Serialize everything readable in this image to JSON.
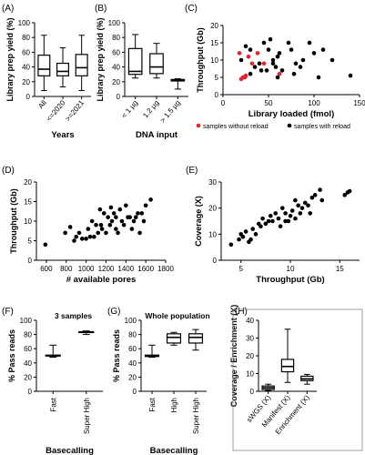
{
  "panels": {
    "A": "(A)",
    "B": "(B)",
    "C": "(C)",
    "D": "(D)",
    "E": "(E)",
    "F": "(F)",
    "G": "(G)",
    "H": "(H)"
  },
  "colors": {
    "black": "#000000",
    "red": "#e8202a"
  },
  "chart_data": [
    {
      "id": "A",
      "type": "box",
      "ylabel": "Library prep yield (%)",
      "xlabel": "Years",
      "ylim": [
        0,
        100
      ],
      "yticks": [
        "0",
        "20",
        "40",
        "60",
        "80",
        "100"
      ],
      "categories": [
        "All",
        "<=2020",
        ">=2021"
      ],
      "boxes": [
        {
          "min": 8,
          "q1": 28,
          "median": 37,
          "q3": 56,
          "max": 83
        },
        {
          "min": 13,
          "q1": 28,
          "median": 34,
          "q3": 45,
          "max": 66
        },
        {
          "min": 8,
          "q1": 28,
          "median": 39,
          "q3": 57,
          "max": 83
        }
      ]
    },
    {
      "id": "B",
      "type": "box",
      "ylabel": "Library prep yield (%)",
      "xlabel": "DNA input",
      "ylim": [
        0,
        100
      ],
      "yticks": [
        "0",
        "20",
        "40",
        "60",
        "80",
        "100"
      ],
      "categories": [
        "< 1 µg",
        "1.2 µg",
        "> 1.5 µg"
      ],
      "boxes": [
        {
          "min": 25,
          "q1": 30,
          "median": 34,
          "q3": 65,
          "max": 84
        },
        {
          "min": 25,
          "q1": 31,
          "median": 40,
          "q3": 58,
          "max": 72
        },
        {
          "min": 10,
          "q1": 21,
          "median": 22,
          "q3": 23,
          "max": 24
        }
      ]
    },
    {
      "id": "C",
      "type": "scatter",
      "ylabel": "Throughput (Gb)",
      "xlabel": "Library loaded (fmol)",
      "xlim": [
        0,
        150
      ],
      "ylim": [
        0,
        20
      ],
      "xticks": [
        "0",
        "50",
        "100",
        "150"
      ],
      "yticks": [
        "0",
        "5",
        "10",
        "15",
        "20"
      ],
      "legend": [
        "samples without reload",
        "samples with reload"
      ],
      "series": [
        {
          "name": "samples without reload",
          "color": "#e8202a",
          "points": [
            [
              18,
              12
            ],
            [
              22,
              5
            ],
            [
              25,
              5.5
            ],
            [
              28,
              11
            ],
            [
              32,
              9
            ],
            [
              38,
              12
            ],
            [
              45,
              9
            ],
            [
              62,
              6
            ],
            [
              20,
              4.5
            ],
            [
              24,
              5
            ]
          ]
        },
        {
          "name": "samples with reload",
          "color": "#000000",
          "points": [
            [
              20,
              10
            ],
            [
              25,
              14
            ],
            [
              30,
              13
            ],
            [
              35,
              8
            ],
            [
              40,
              9
            ],
            [
              42,
              7
            ],
            [
              45,
              15
            ],
            [
              48,
              7
            ],
            [
              50,
              13
            ],
            [
              52,
              16
            ],
            [
              55,
              10
            ],
            [
              55,
              9
            ],
            [
              58,
              8
            ],
            [
              60,
              11
            ],
            [
              62,
              12
            ],
            [
              65,
              7
            ],
            [
              72,
              15
            ],
            [
              75,
              13
            ],
            [
              78,
              6
            ],
            [
              80,
              9
            ],
            [
              85,
              8
            ],
            [
              88,
              10
            ],
            [
              95,
              15
            ],
            [
              100,
              12
            ],
            [
              105,
              5
            ],
            [
              110,
              13
            ],
            [
              120,
              10
            ],
            [
              140,
              5.5
            ],
            [
              60,
              5
            ],
            [
              30,
              6
            ]
          ]
        }
      ]
    },
    {
      "id": "D",
      "type": "scatter",
      "ylabel": "Throughput (Gb)",
      "xlabel": "# available pores",
      "xlim": [
        500,
        1800
      ],
      "ylim": [
        0,
        20
      ],
      "xticks": [
        "600",
        "800",
        "1000",
        "1200",
        "1400",
        "1600",
        "1800"
      ],
      "yticks": [
        "0",
        "5",
        "10",
        "15",
        "20"
      ],
      "points": [
        [
          590,
          4
        ],
        [
          790,
          7
        ],
        [
          840,
          8.5
        ],
        [
          880,
          5
        ],
        [
          900,
          6
        ],
        [
          930,
          7
        ],
        [
          960,
          5.5
        ],
        [
          1000,
          5.5
        ],
        [
          1020,
          8
        ],
        [
          1040,
          6
        ],
        [
          1060,
          10
        ],
        [
          1080,
          6
        ],
        [
          1100,
          9
        ],
        [
          1120,
          7
        ],
        [
          1140,
          13
        ],
        [
          1160,
          8
        ],
        [
          1180,
          12
        ],
        [
          1200,
          7
        ],
        [
          1220,
          11
        ],
        [
          1240,
          9
        ],
        [
          1260,
          10
        ],
        [
          1280,
          12
        ],
        [
          1300,
          11
        ],
        [
          1320,
          7
        ],
        [
          1340,
          13
        ],
        [
          1360,
          10
        ],
        [
          1380,
          9
        ],
        [
          1400,
          14
        ],
        [
          1420,
          11
        ],
        [
          1440,
          11
        ],
        [
          1460,
          8
        ],
        [
          1480,
          10
        ],
        [
          1500,
          11
        ],
        [
          1520,
          12
        ],
        [
          1540,
          7
        ],
        [
          1560,
          12
        ],
        [
          1580,
          10
        ],
        [
          1600,
          14
        ],
        [
          1650,
          15.5
        ],
        [
          1250,
          13.5
        ],
        [
          1150,
          9
        ],
        [
          1300,
          8
        ]
      ]
    },
    {
      "id": "E",
      "type": "scatter",
      "ylabel": "Coverage (X)",
      "xlabel": "Throughput (Gb)",
      "xlim": [
        3,
        17
      ],
      "ylim": [
        0,
        30
      ],
      "xticks": [
        "5",
        "10",
        "15"
      ],
      "yticks": [
        "0",
        "10",
        "20",
        "30"
      ],
      "points": [
        [
          4,
          6
        ],
        [
          4.8,
          8
        ],
        [
          5,
          10
        ],
        [
          5.2,
          9
        ],
        [
          5.5,
          11
        ],
        [
          5.8,
          7
        ],
        [
          6,
          8
        ],
        [
          6.2,
          12
        ],
        [
          6.5,
          10
        ],
        [
          6.8,
          14
        ],
        [
          7,
          13
        ],
        [
          7.2,
          16
        ],
        [
          7.5,
          14
        ],
        [
          7.8,
          15
        ],
        [
          8,
          17
        ],
        [
          8.2,
          15
        ],
        [
          8.5,
          18
        ],
        [
          8.8,
          16
        ],
        [
          9,
          13
        ],
        [
          9.2,
          20
        ],
        [
          9.5,
          18
        ],
        [
          9.8,
          15
        ],
        [
          10,
          17
        ],
        [
          10.2,
          19
        ],
        [
          10.5,
          16
        ],
        [
          10.8,
          21
        ],
        [
          11,
          18
        ],
        [
          11.2,
          20
        ],
        [
          11.5,
          22
        ],
        [
          12,
          18
        ],
        [
          12.2,
          24
        ],
        [
          12.5,
          25
        ],
        [
          13,
          27
        ],
        [
          13.2,
          23
        ],
        [
          15.5,
          25
        ],
        [
          15.8,
          26
        ],
        [
          16,
          26.5
        ],
        [
          11.8,
          21
        ],
        [
          10.5,
          23
        ],
        [
          9.5,
          15
        ]
      ]
    },
    {
      "id": "F",
      "type": "box",
      "title": "3 samples",
      "ylabel": "% Pass reads",
      "xlabel": "Basecalling",
      "ylim": [
        0,
        100
      ],
      "yticks": [
        "0",
        "20",
        "40",
        "60",
        "80",
        "100"
      ],
      "categories": [
        "Fast",
        "Super High"
      ],
      "boxes": [
        {
          "min": 48,
          "q1": 50,
          "median": 50,
          "q3": 51,
          "max": 65
        },
        {
          "min": 80,
          "q1": 83,
          "median": 83.5,
          "q3": 84,
          "max": 85
        }
      ]
    },
    {
      "id": "G",
      "type": "box",
      "title": "Whole population",
      "ylabel": "% Pass reads",
      "xlabel": "Basecalling",
      "ylim": [
        0,
        100
      ],
      "yticks": [
        "0",
        "20",
        "40",
        "60",
        "80",
        "100"
      ],
      "categories": [
        "Fast",
        "High",
        "Super High"
      ],
      "boxes": [
        {
          "min": 48,
          "q1": 49,
          "median": 50,
          "q3": 51,
          "max": 65
        },
        {
          "min": 65,
          "q1": 68,
          "median": 76,
          "q3": 81,
          "max": 83
        },
        {
          "min": 58,
          "q1": 68,
          "median": 76,
          "q3": 81,
          "max": 87
        }
      ]
    },
    {
      "id": "H",
      "type": "box",
      "ylabel": "Coverage / Enrichment (X)",
      "ylim": [
        0,
        40
      ],
      "yticks": [
        "0",
        "10",
        "20",
        "30",
        "40"
      ],
      "categories": [
        "sWGS (X)",
        "Manifest (X)",
        "Enrichment (X)"
      ],
      "boxes": [
        {
          "min": 0.5,
          "q1": 1,
          "median": 2,
          "q3": 3,
          "max": 4
        },
        {
          "min": 5,
          "q1": 11,
          "median": 14,
          "q3": 18,
          "max": 35
        },
        {
          "min": 4,
          "q1": 6,
          "median": 7,
          "q3": 8.5,
          "max": 9.5
        }
      ]
    }
  ]
}
